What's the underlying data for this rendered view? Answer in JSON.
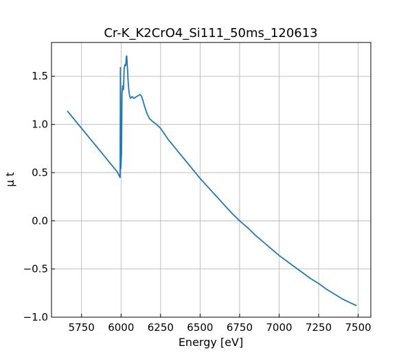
{
  "chart_data": {
    "type": "line",
    "title": "Cr-K_K2CrO4_Si111_50ms_120613",
    "xlabel": "Energy [eV]",
    "ylabel": "μ t",
    "xlim": [
      5560,
      7580
    ],
    "ylim": [
      -1.0,
      1.85
    ],
    "xticks": [
      5750,
      6000,
      6250,
      6500,
      6750,
      7000,
      7250,
      7500
    ],
    "yticks": [
      -1.0,
      -0.5,
      0.0,
      0.5,
      1.0,
      1.5
    ],
    "xtick_labels": [
      "5750",
      "6000",
      "6250",
      "6500",
      "6750",
      "7000",
      "7250",
      "7500"
    ],
    "ytick_labels": [
      "−1.0",
      "−0.5",
      "0.0",
      "0.5",
      "1.0",
      "1.5"
    ],
    "grid": true,
    "series": [
      {
        "color": "#1f77b4",
        "x": [
          5660,
          5700,
          5750,
          5800,
          5850,
          5900,
          5950,
          5975,
          5985,
          5990,
          5992,
          5994,
          5996,
          5998,
          6000,
          6003,
          6006,
          6010,
          6015,
          6020,
          6025,
          6030,
          6033,
          6036,
          6040,
          6045,
          6050,
          6055,
          6060,
          6065,
          6070,
          6075,
          6080,
          6090,
          6100,
          6110,
          6120,
          6130,
          6140,
          6150,
          6165,
          6180,
          6200,
          6225,
          6250,
          6300,
          6350,
          6400,
          6450,
          6500,
          6550,
          6600,
          6650,
          6700,
          6750,
          6800,
          6850,
          6900,
          6950,
          7000,
          7050,
          7100,
          7150,
          7200,
          7250,
          7300,
          7350,
          7400,
          7450,
          7490
        ],
        "y": [
          1.14,
          1.06,
          0.96,
          0.86,
          0.76,
          0.66,
          0.56,
          0.51,
          0.48,
          0.46,
          0.455,
          0.45,
          1.59,
          0.54,
          0.6,
          0.7,
          1.32,
          1.4,
          1.36,
          1.58,
          1.62,
          1.61,
          1.7,
          1.71,
          1.6,
          1.44,
          1.34,
          1.29,
          1.27,
          1.28,
          1.29,
          1.28,
          1.27,
          1.28,
          1.29,
          1.3,
          1.31,
          1.29,
          1.24,
          1.18,
          1.11,
          1.06,
          1.03,
          1.0,
          0.96,
          0.84,
          0.74,
          0.64,
          0.54,
          0.44,
          0.35,
          0.26,
          0.17,
          0.08,
          0.0,
          -0.07,
          -0.15,
          -0.22,
          -0.29,
          -0.36,
          -0.42,
          -0.48,
          -0.54,
          -0.6,
          -0.65,
          -0.71,
          -0.76,
          -0.81,
          -0.85,
          -0.88
        ]
      }
    ]
  }
}
